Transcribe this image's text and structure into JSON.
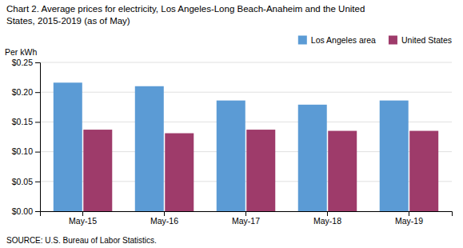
{
  "chart_data": {
    "type": "bar",
    "title": "Chart 2. Average prices for electricity, Los Angeles-Long Beach-Anaheim and the United",
    "subtitle": "States, 2015-2019  (as of May)",
    "y_label": "Per kWh",
    "annotations": [
      "SOURCE: U.S. Bureau of Labor Statistics."
    ],
    "categories": [
      "May-15",
      "May-16",
      "May-17",
      "May-18",
      "May-19"
    ],
    "series": [
      {
        "name": "Los Angeles area",
        "color": "#5B9BD5",
        "values": [
          0.216,
          0.21,
          0.186,
          0.179,
          0.186
        ]
      },
      {
        "name": "United States",
        "color": "#9E3B6A",
        "values": [
          0.137,
          0.131,
          0.137,
          0.135,
          0.135
        ]
      }
    ],
    "ylim": [
      0,
      0.25
    ],
    "yticks": [
      {
        "value": 0.0,
        "label": "$0.00"
      },
      {
        "value": 0.05,
        "label": "$0.05"
      },
      {
        "value": 0.1,
        "label": "$0.10"
      },
      {
        "value": 0.15,
        "label": "$0.15"
      },
      {
        "value": 0.2,
        "label": "$0.20"
      },
      {
        "value": 0.25,
        "label": "$0.25"
      }
    ],
    "grid": true,
    "legend": "upper right"
  }
}
